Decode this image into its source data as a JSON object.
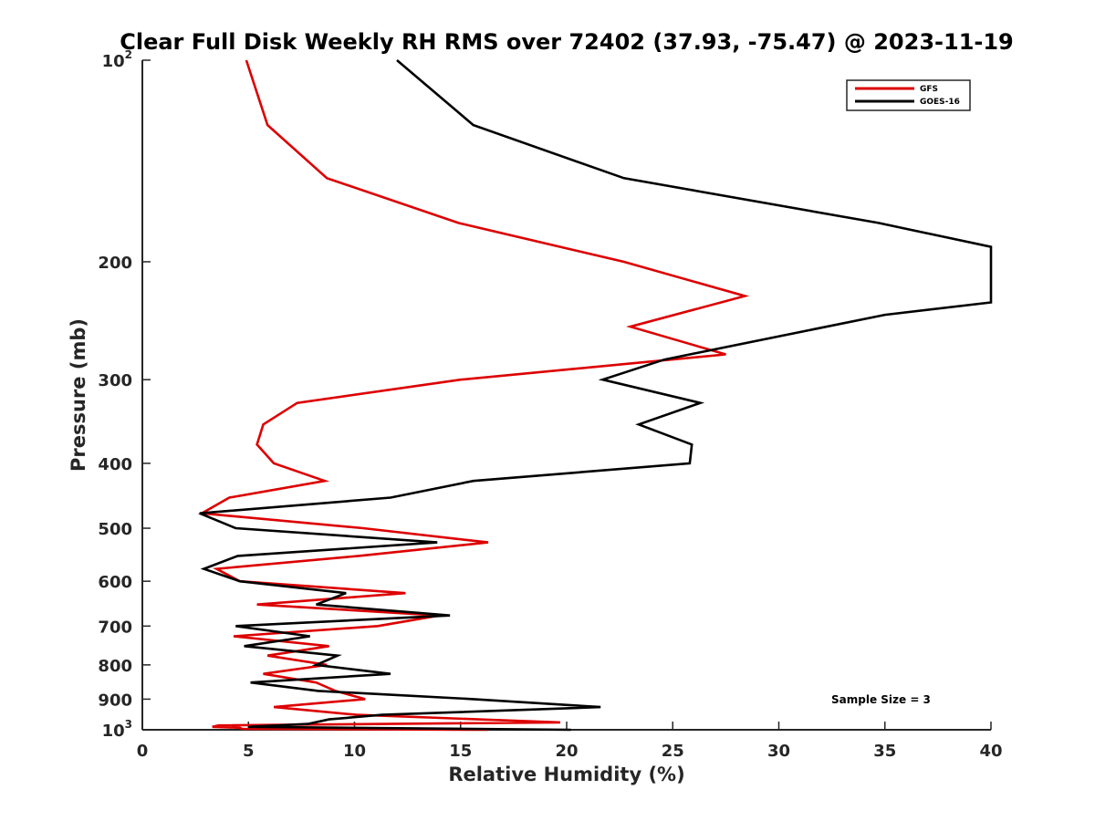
{
  "chart_data": {
    "type": "line",
    "title": "Clear Full Disk Weekly RH RMS over 72402 (37.93, -75.47) @ 2023-11-19",
    "xlabel": "Relative Humidity (%)",
    "ylabel": "Pressure (mb)",
    "xlim": [
      0,
      40
    ],
    "ylim": [
      1000,
      100
    ],
    "yscale": "log",
    "xticks": [
      0,
      5,
      10,
      15,
      20,
      25,
      30,
      35,
      40
    ],
    "xtick_labels": [
      "0",
      "5",
      "10",
      "15",
      "20",
      "25",
      "30",
      "35",
      "40"
    ],
    "yticks": [
      100,
      200,
      300,
      400,
      500,
      600,
      700,
      800,
      900,
      1000
    ],
    "ytick_labels": [
      {
        "base": "10",
        "sup": "2"
      },
      {
        "base": "200",
        "sup": ""
      },
      {
        "base": "300",
        "sup": ""
      },
      {
        "base": "400",
        "sup": ""
      },
      {
        "base": "500",
        "sup": ""
      },
      {
        "base": "600",
        "sup": ""
      },
      {
        "base": "700",
        "sup": ""
      },
      {
        "base": "800",
        "sup": ""
      },
      {
        "base": "900",
        "sup": ""
      },
      {
        "base": "10",
        "sup": "3"
      }
    ],
    "legend_position": "top-right",
    "annotation": "Sample Size = 3",
    "series": [
      {
        "name": "GFS",
        "color": "#dd0000",
        "points": [
          [
            4.9,
            100
          ],
          [
            5.9,
            125
          ],
          [
            8.7,
            150
          ],
          [
            14.9,
            175
          ],
          [
            22.7,
            200
          ],
          [
            28.4,
            225
          ],
          [
            23.0,
            250
          ],
          [
            27.5,
            275
          ],
          [
            15.0,
            300
          ],
          [
            7.3,
            325
          ],
          [
            5.7,
            350
          ],
          [
            5.4,
            375
          ],
          [
            6.2,
            400
          ],
          [
            8.6,
            425
          ],
          [
            4.1,
            450
          ],
          [
            2.8,
            475
          ],
          [
            10.4,
            500
          ],
          [
            16.3,
            525
          ],
          [
            10.2,
            550
          ],
          [
            3.5,
            575
          ],
          [
            4.6,
            600
          ],
          [
            12.4,
            625
          ],
          [
            5.4,
            650
          ],
          [
            14.0,
            675
          ],
          [
            11.1,
            700
          ],
          [
            4.3,
            725
          ],
          [
            8.8,
            750
          ],
          [
            5.9,
            775
          ],
          [
            8.7,
            800
          ],
          [
            5.7,
            825
          ],
          [
            8.2,
            850
          ],
          [
            9.1,
            875
          ],
          [
            10.5,
            900
          ],
          [
            6.2,
            925
          ],
          [
            10.1,
            950
          ],
          [
            19.7,
            975
          ],
          [
            3.6,
            985
          ],
          [
            3.3,
            990
          ],
          [
            4.6,
            993
          ],
          [
            4.7,
            997
          ],
          [
            16.3,
            1000
          ]
        ]
      },
      {
        "name": "GOES-16",
        "color": "#000000",
        "points": [
          [
            12.0,
            100
          ],
          [
            15.6,
            125
          ],
          [
            22.7,
            150
          ],
          [
            34.7,
            175
          ],
          [
            40.0,
            190
          ],
          [
            40.0,
            230
          ],
          [
            35.0,
            240
          ],
          [
            24.6,
            280
          ],
          [
            21.7,
            300
          ],
          [
            26.3,
            325
          ],
          [
            23.4,
            350
          ],
          [
            25.9,
            375
          ],
          [
            25.8,
            400
          ],
          [
            15.6,
            425
          ],
          [
            11.7,
            450
          ],
          [
            2.7,
            475
          ],
          [
            4.4,
            500
          ],
          [
            13.9,
            525
          ],
          [
            4.5,
            550
          ],
          [
            2.9,
            575
          ],
          [
            4.6,
            600
          ],
          [
            9.6,
            625
          ],
          [
            8.2,
            650
          ],
          [
            14.5,
            675
          ],
          [
            4.4,
            700
          ],
          [
            7.9,
            725
          ],
          [
            4.8,
            750
          ],
          [
            9.2,
            775
          ],
          [
            8.2,
            800
          ],
          [
            11.7,
            825
          ],
          [
            5.1,
            850
          ],
          [
            8.3,
            875
          ],
          [
            15.6,
            900
          ],
          [
            21.6,
            925
          ],
          [
            11.3,
            950
          ],
          [
            8.8,
            965
          ],
          [
            7.8,
            980
          ],
          [
            5.0,
            990
          ],
          [
            20.2,
            1000
          ]
        ]
      }
    ]
  }
}
